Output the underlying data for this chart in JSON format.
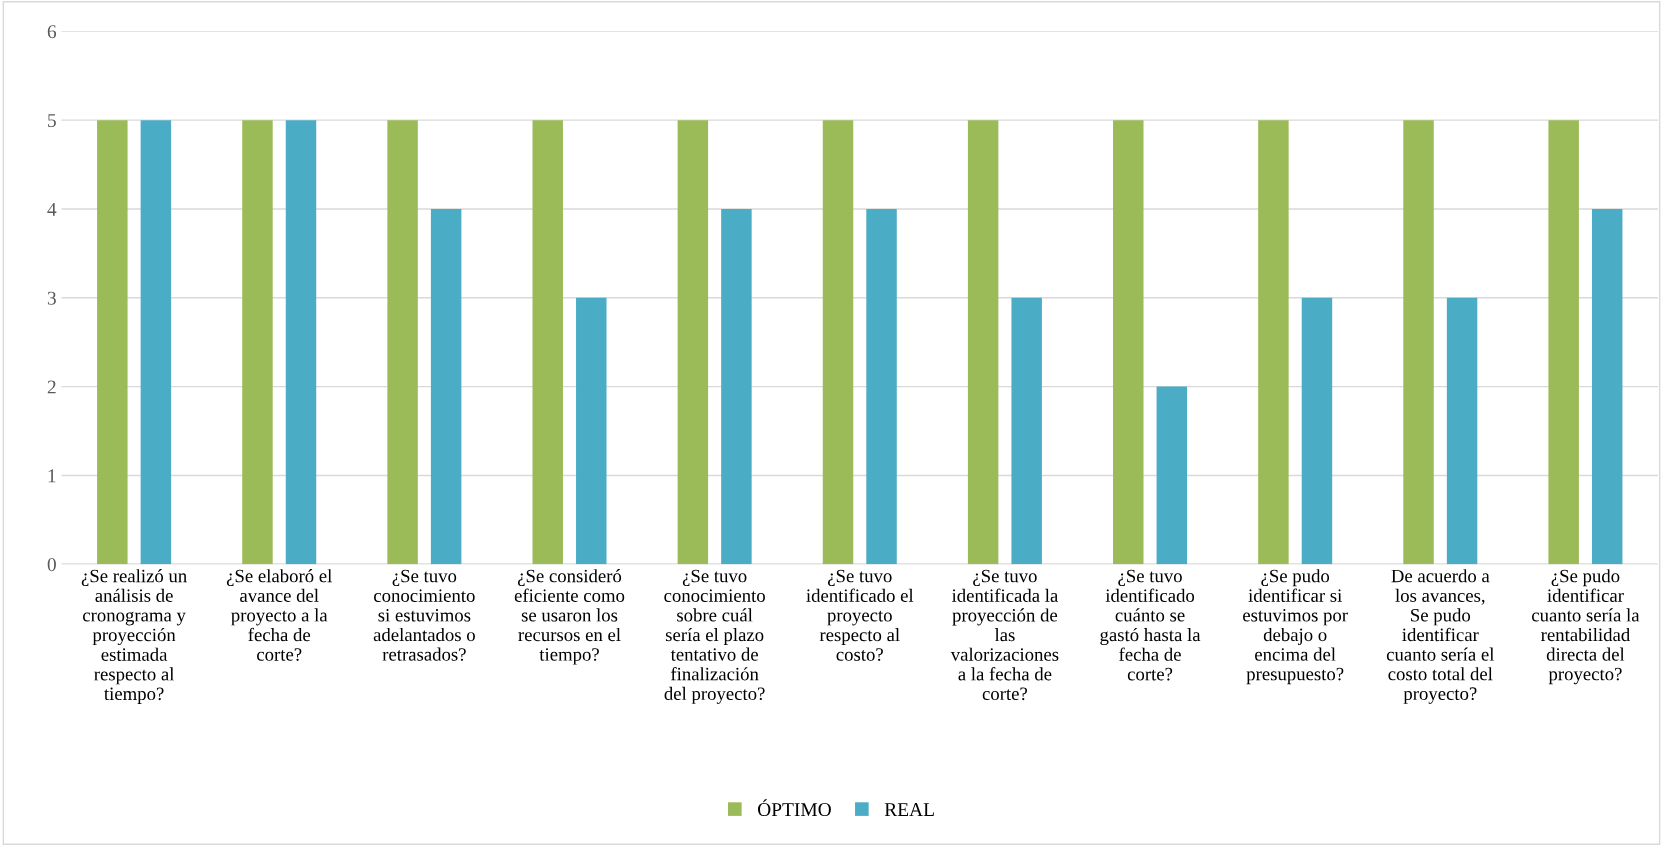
{
  "chart_data": {
    "type": "bar",
    "categories": [
      "¿Se realizó un\nanálisis de\ncronograma y\nproyección\nestimada\nrespecto al\ntiempo?",
      "¿Se elaboró el\navance del\nproyecto a la\nfecha de\ncorte?",
      "¿Se tuvo\nconocimiento\nsi estuvimos\nadelantados o\nretrasados?",
      "¿Se consideró\neficiente como\nse usaron los\nrecursos en el\ntiempo?",
      "¿Se tuvo\nconocimiento\nsobre cuál\nsería el plazo\ntentativo de\nfinalización\ndel proyecto?",
      "¿Se tuvo\nidentificado el\nproyecto\nrespecto al\ncosto?",
      "¿Se tuvo\nidentificada la\nproyección de\nlas\nvalorizaciones\na la fecha de\ncorte?",
      "¿Se tuvo\nidentificado\ncuánto se\ngastó hasta la\nfecha de\ncorte?",
      "¿Se pudo\nidentificar si\nestuvimos por\ndebajo o\nencima del\npresupuesto?",
      "De acuerdo a\nlos avances,\nSe pudo\nidentificar\ncuanto sería el\ncosto total del\nproyecto?",
      "¿Se pudo\nidentificar\ncuanto sería la\nrentabilidad\ndirecta del\nproyecto?"
    ],
    "series": [
      {
        "name": "ÓPTIMO",
        "color": "#9bbb59",
        "values": [
          5,
          5,
          5,
          5,
          5,
          5,
          5,
          5,
          5,
          5,
          5
        ]
      },
      {
        "name": "REAL",
        "color": "#4bacc6",
        "values": [
          5,
          5,
          4,
          3,
          4,
          4,
          3,
          2,
          3,
          3,
          4
        ]
      }
    ],
    "ylim": [
      0,
      6
    ],
    "yticks": [
      0,
      1,
      2,
      3,
      4,
      5,
      6
    ],
    "grid": "y",
    "legend": "bottom"
  }
}
